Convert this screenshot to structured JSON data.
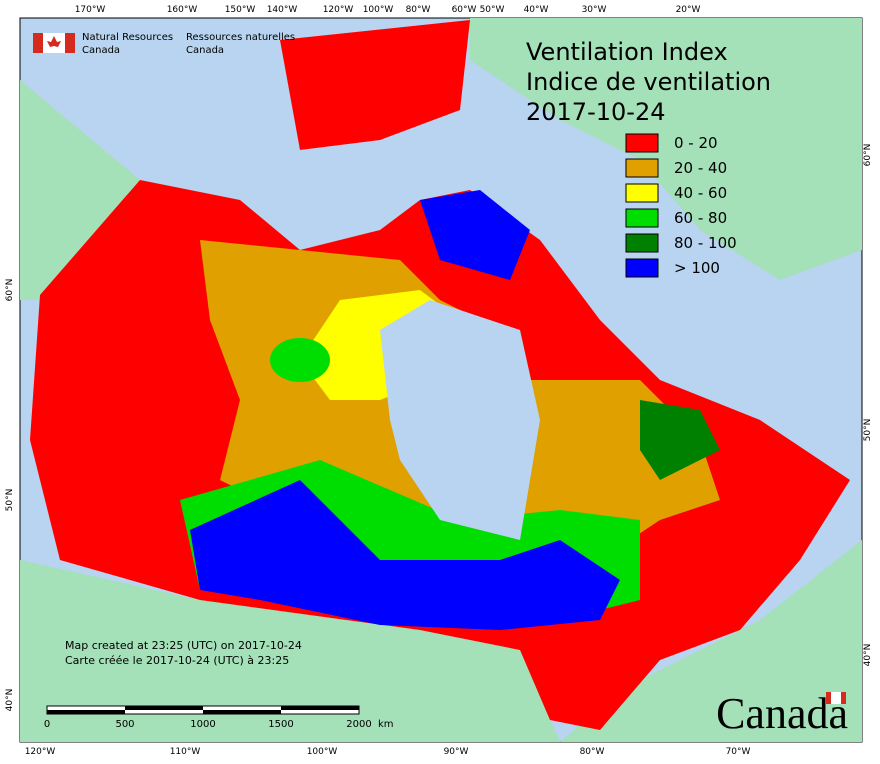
{
  "header": {
    "agency_en": "Natural Resources",
    "agency_en_2": "Canada",
    "agency_fr": "Ressources naturelles",
    "agency_fr_2": "Canada"
  },
  "title": {
    "line1": "Ventilation Index",
    "line2": "Indice de ventilation",
    "date": "2017-10-24"
  },
  "legend": [
    {
      "label": "0 - 20",
      "color": "#ff0000"
    },
    {
      "label": "20 - 40",
      "color": "#e0a000"
    },
    {
      "label": "40 - 60",
      "color": "#ffff00"
    },
    {
      "label": "60 - 80",
      "color": "#00dd00"
    },
    {
      "label": "80 - 100",
      "color": "#008000"
    },
    {
      "label": "> 100",
      "color": "#0000ff"
    }
  ],
  "top_longitudes": [
    "170°W",
    "160°W",
    "150°W",
    "140°W",
    "120°W",
    "100°W",
    "80°W",
    "60°W",
    "50°W",
    "40°W",
    "30°W",
    "20°W"
  ],
  "bottom_longitudes": [
    "120°W",
    "110°W",
    "100°W",
    "90°W",
    "80°W",
    "70°W"
  ],
  "left_latitudes": [
    "60°N",
    "50°N",
    "40°N"
  ],
  "right_latitudes": [
    "60°N",
    "50°N",
    "40°N"
  ],
  "footer": {
    "created_en": "Map created at 23:25 (UTC) on 2017-10-24",
    "created_fr": "Carte créée le 2017-10-24 (UTC) à 23:25"
  },
  "scale_bar": {
    "ticks": [
      "0",
      "500",
      "1000",
      "1500",
      "2000"
    ],
    "unit": "km"
  },
  "wordmark": "Canada"
}
